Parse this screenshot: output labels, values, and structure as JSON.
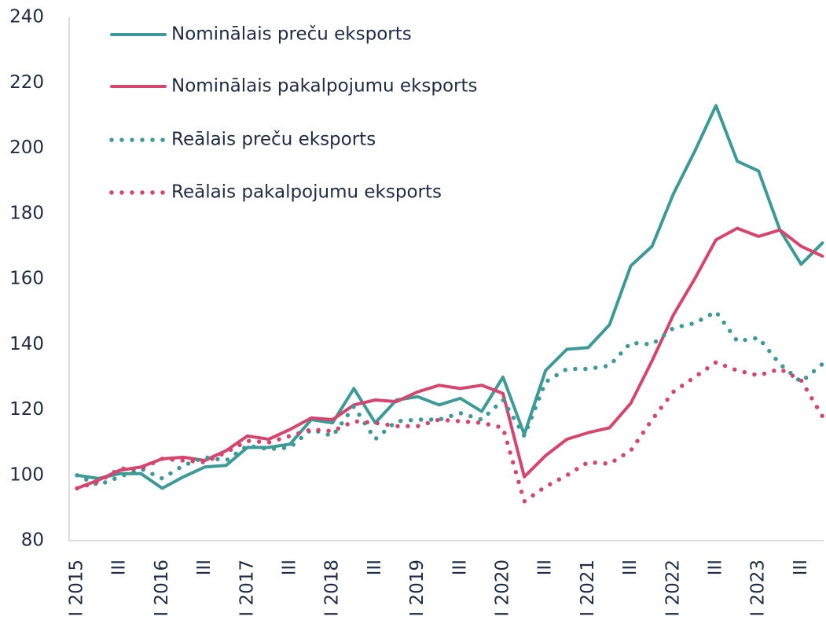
{
  "chart_data": {
    "type": "line",
    "categories": [
      "I 2015",
      null,
      "III",
      null,
      "I 2016",
      null,
      "III",
      null,
      "I 2017",
      null,
      "III",
      null,
      "I 2018",
      null,
      "III",
      null,
      "I 2019",
      null,
      "III",
      null,
      "I 2020",
      null,
      "III",
      null,
      "I 2021",
      null,
      "III",
      null,
      "I 2022",
      null,
      "III",
      null,
      "I 2023",
      null,
      "III",
      null
    ],
    "ylim": [
      80,
      240
    ],
    "yticks": [
      80,
      100,
      120,
      140,
      160,
      180,
      200,
      220,
      240
    ],
    "legend": "top-left",
    "series": [
      {
        "name": "Nominālais preču eksports",
        "color": "#3d9a96",
        "line_style": "solid",
        "values": [
          100,
          99,
          100.5,
          100.5,
          96,
          99.5,
          102.5,
          103,
          108.5,
          108.5,
          109.5,
          117,
          116,
          126.5,
          116,
          123,
          124,
          121.5,
          123.5,
          119.5,
          130,
          112.5,
          132,
          138.5,
          139,
          146,
          164,
          170,
          186,
          199,
          213,
          196,
          193,
          175,
          164.5,
          171
        ]
      },
      {
        "name": "Nominālais pakalpojumu eksports",
        "color": "#d6456e",
        "line_style": "solid",
        "values": [
          96,
          98.5,
          101.5,
          102.5,
          105,
          105.5,
          104.5,
          107.5,
          112,
          111,
          114,
          117.5,
          117,
          121.5,
          123,
          122.5,
          125.5,
          127.5,
          126.5,
          127.5,
          125,
          99.5,
          106,
          111,
          113,
          114.5,
          122,
          135,
          149,
          160,
          172,
          175.5,
          173,
          175,
          170,
          167
        ]
      },
      {
        "name": "Reālais preču eksports",
        "color": "#3d9a96",
        "line_style": "dotted",
        "values": [
          100,
          97,
          99.5,
          102,
          99,
          103,
          105.5,
          104.5,
          109,
          108,
          108.5,
          114,
          112,
          121,
          111,
          116.5,
          117,
          117,
          119,
          117,
          123,
          112,
          128.5,
          132.5,
          132.5,
          133.5,
          140.5,
          140,
          145,
          146.5,
          150,
          141,
          142,
          134,
          128.5,
          134
        ]
      },
      {
        "name": "Reālais pakalpojumu eksports",
        "color": "#d6456e",
        "line_style": "dotted",
        "values": [
          96,
          98,
          102,
          102,
          105,
          104.5,
          104,
          107,
          110.5,
          110,
          112,
          114,
          113.5,
          116.5,
          116,
          115,
          115,
          117,
          116.5,
          116,
          114.5,
          92,
          96.5,
          100,
          104,
          103.5,
          107.5,
          117,
          125.5,
          130,
          134.5,
          132,
          130.5,
          132.5,
          129,
          118
        ]
      }
    ]
  }
}
